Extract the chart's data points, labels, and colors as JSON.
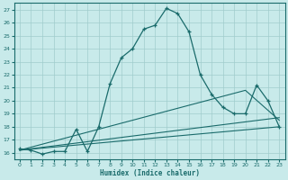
{
  "title": "",
  "xlabel": "Humidex (Indice chaleur)",
  "ylabel": "",
  "bg_color": "#c8eaea",
  "grid_color": "#a0cccc",
  "line_color": "#1a6b6b",
  "xlim": [
    -0.5,
    23.5
  ],
  "ylim": [
    15.5,
    27.5
  ],
  "xticks": [
    0,
    1,
    2,
    3,
    4,
    5,
    6,
    7,
    8,
    9,
    10,
    11,
    12,
    13,
    14,
    15,
    16,
    17,
    18,
    19,
    20,
    21,
    22,
    23
  ],
  "yticks": [
    16,
    17,
    18,
    19,
    20,
    21,
    22,
    23,
    24,
    25,
    26,
    27
  ],
  "line1_x": [
    0,
    1,
    2,
    3,
    4,
    5,
    6,
    7,
    8,
    9,
    10,
    11,
    12,
    13,
    14,
    15,
    16,
    17,
    18,
    19,
    20,
    21,
    22,
    23
  ],
  "line1_y": [
    16.3,
    16.2,
    15.9,
    16.1,
    16.1,
    17.8,
    16.1,
    18.0,
    21.3,
    23.3,
    24.0,
    25.5,
    25.8,
    27.1,
    26.7,
    25.3,
    22.0,
    20.5,
    19.5,
    19.0,
    19.0,
    21.2,
    20.0,
    18.0
  ],
  "line2_x": [
    0,
    23
  ],
  "line2_y": [
    16.2,
    18.0
  ],
  "line3_x": [
    0,
    23
  ],
  "line3_y": [
    16.2,
    18.7
  ],
  "line4_x": [
    0,
    20,
    23
  ],
  "line4_y": [
    16.2,
    20.8,
    18.5
  ]
}
